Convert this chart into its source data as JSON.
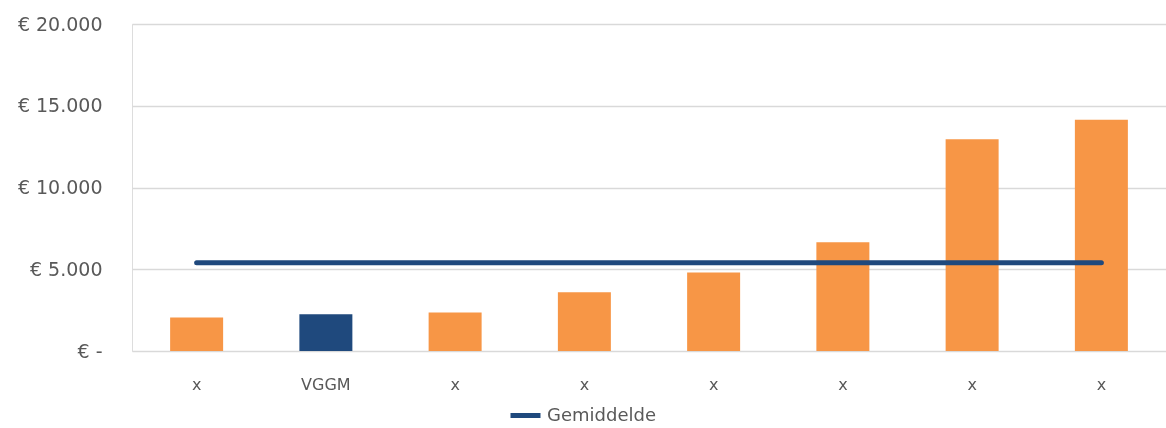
{
  "chart_data": {
    "type": "bar",
    "categories": [
      "x",
      "VGGM",
      "x",
      "x",
      "x",
      "x",
      "x",
      "x"
    ],
    "series": [
      {
        "colors": [
          "#f79646",
          "#1f497d",
          "#f79646",
          "#f79646",
          "#f79646",
          "#f79646",
          "#f79646",
          "#f79646"
        ],
        "values": [
          2050,
          2250,
          2350,
          3600,
          4800,
          6650,
          12950,
          14150
        ]
      },
      {
        "type": "line",
        "name": "Gemiddelde",
        "color": "#1f497d",
        "values": [
          5400,
          5400,
          5400,
          5400,
          5400,
          5400,
          5400,
          5400
        ]
      }
    ],
    "ylim": [
      0,
      20000
    ],
    "yticks": [
      {
        "value": 0,
        "label": "€ -"
      },
      {
        "value": 5000,
        "label": "€ 5.000"
      },
      {
        "value": 10000,
        "label": "€ 10.000"
      },
      {
        "value": 15000,
        "label": "€ 15.000"
      },
      {
        "value": 20000,
        "label": "€ 20.000"
      }
    ],
    "grid": "y",
    "legend": "bottom",
    "line_style": "solid"
  }
}
